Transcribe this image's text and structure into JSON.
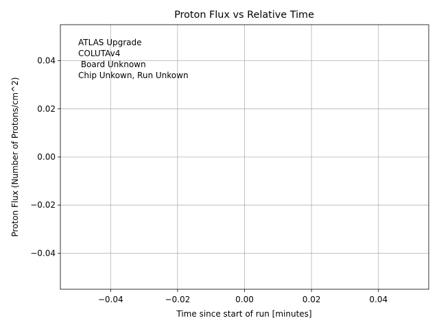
{
  "chart_data": {
    "type": "line",
    "title": "Proton Flux vs Relative Time",
    "x_label": "Time since start of run [minutes]",
    "y_label": "Proton Flux (Number of Protons/cm^2)",
    "annotation": [
      "ATLAS Upgrade",
      "COLUTAv4",
      " Board Unknown",
      "Chip Unkown, Run Unkown"
    ],
    "xlim": [
      -0.055,
      0.055
    ],
    "ylim": [
      -0.055,
      0.055
    ],
    "xticks": [
      {
        "value": -0.04,
        "label": "−0.04"
      },
      {
        "value": -0.02,
        "label": "−0.02"
      },
      {
        "value": 0,
        "label": "0.00"
      },
      {
        "value": 0.02,
        "label": "0.02"
      },
      {
        "value": 0.04,
        "label": "0.04"
      }
    ],
    "yticks": [
      {
        "value": -0.04,
        "label": "−0.04"
      },
      {
        "value": -0.02,
        "label": "−0.02"
      },
      {
        "value": 0,
        "label": "0.00"
      },
      {
        "value": 0.02,
        "label": "0.02"
      },
      {
        "value": 0.04,
        "label": "0.04"
      }
    ],
    "grid": true
  }
}
